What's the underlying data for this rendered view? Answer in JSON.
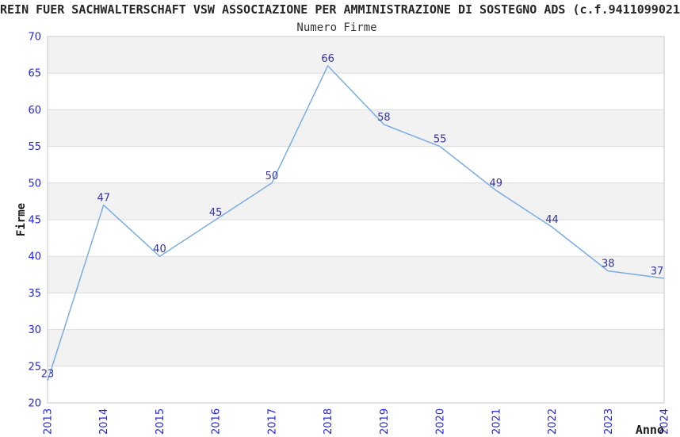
{
  "header": {
    "title": "REIN FUER SACHWALTERSCHAFT VSW ASSOCIAZIONE PER AMMINISTRAZIONE DI SOSTEGNO ADS (c.f.9411099021",
    "subtitle": "Numero Firme"
  },
  "chart_data": {
    "type": "line",
    "title": "Numero Firme",
    "x": [
      2013,
      2014,
      2015,
      2016,
      2017,
      2018,
      2019,
      2020,
      2021,
      2022,
      2023,
      2024
    ],
    "values": [
      23,
      47,
      40,
      45,
      50,
      66,
      58,
      55,
      49,
      44,
      38,
      37
    ],
    "xlabel": "Anno",
    "ylabel": "Firme",
    "ylim": [
      20,
      70
    ],
    "yticks": [
      20,
      25,
      30,
      35,
      40,
      45,
      50,
      55,
      60,
      65,
      70
    ],
    "grid": true,
    "legend": false,
    "banded_background": true,
    "colors": {
      "line": "#7aade2",
      "tick_label": "#2222ee",
      "data_label": "#333399",
      "band": "#f2f2f2",
      "gridline": "#dcdcdc",
      "plot_border": "#d0d0d0",
      "text": "#333333"
    }
  }
}
